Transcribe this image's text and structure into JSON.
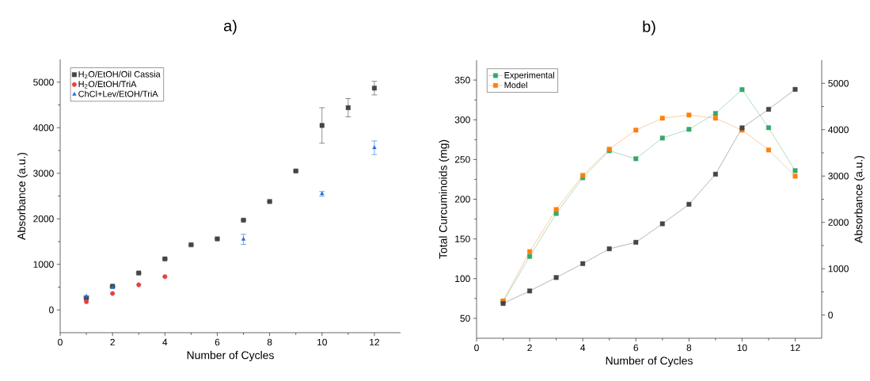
{
  "chart_data": [
    {
      "type": "scatter",
      "title": "a)",
      "xlabel": "Number of Cycles",
      "ylabel": "Absorbance (a.u.)",
      "xlim": [
        0,
        13
      ],
      "xticks": [
        0,
        2,
        4,
        6,
        8,
        10,
        12
      ],
      "ylim": [
        -500,
        5500
      ],
      "yticks": [
        0,
        1000,
        2000,
        3000,
        4000,
        5000
      ],
      "legend": "top left",
      "grid": false,
      "series": [
        {
          "name": "H$_{2}$O/EtOH/Oil Cassia",
          "color": "#454545",
          "marker": "square",
          "x": [
            1,
            2,
            3,
            4,
            5,
            6,
            7,
            8,
            9,
            10,
            11,
            12
          ],
          "values": [
            260,
            520,
            810,
            1120,
            1430,
            1560,
            1970,
            2380,
            3050,
            4050,
            4440,
            4870
          ],
          "errors": [
            null,
            null,
            null,
            null,
            null,
            null,
            null,
            null,
            null,
            390,
            200,
            150
          ]
        },
        {
          "name": "H$_{2}$O/EtOH/TriA",
          "color": "#e8403f",
          "marker": "circle",
          "x": [
            1,
            2,
            3,
            4
          ],
          "values": [
            180,
            360,
            550,
            730
          ]
        },
        {
          "name": "ChCl+Lev/EtOH/TriA",
          "color": "#1f6fe0",
          "marker": "triangle",
          "x": [
            1,
            2,
            7,
            10,
            12
          ],
          "values": [
            300,
            490,
            1550,
            2550,
            3560
          ],
          "errors": [
            null,
            null,
            110,
            50,
            150
          ]
        }
      ]
    },
    {
      "type": "line",
      "title": "b)",
      "xlabel": "Number of Cycles",
      "ylabel": "Total Curcuminoids (mg)",
      "y2label": "Absorbance (a.u.)",
      "xlim": [
        0,
        13
      ],
      "xticks": [
        0,
        2,
        4,
        6,
        8,
        10,
        12
      ],
      "ylim": [
        25,
        375
      ],
      "yticks": [
        50,
        100,
        150,
        200,
        250,
        300,
        350
      ],
      "y2lim": [
        -500,
        5500
      ],
      "y2ticks": [
        0,
        1000,
        2000,
        3000,
        4000,
        5000
      ],
      "legend": "top left",
      "grid": false,
      "marker": "square",
      "line_style": "solid",
      "x": [
        1,
        2,
        3,
        4,
        5,
        6,
        7,
        8,
        9,
        10,
        11,
        12
      ],
      "series": [
        {
          "name": "Experimental",
          "color": "#35a86a",
          "values": [
            71,
            128,
            182,
            227,
            261,
            251,
            277,
            288,
            308,
            338,
            290,
            236
          ]
        },
        {
          "name": "Model",
          "color": "#ff7f0e",
          "values": [
            72,
            134,
            187,
            230,
            263,
            287,
            302,
            306,
            302,
            287,
            262,
            229
          ]
        },
        {
          "color": "#454545",
          "axis": "y2",
          "values": [
            250,
            520,
            810,
            1110,
            1430,
            1570,
            1970,
            2390,
            3040,
            4040,
            4440,
            4870
          ]
        }
      ]
    }
  ]
}
